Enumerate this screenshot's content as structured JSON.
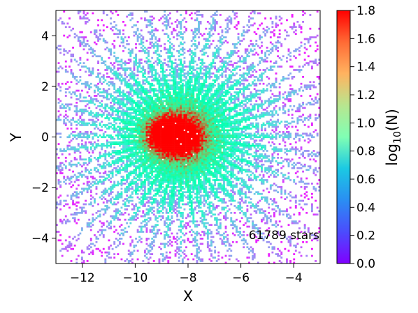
{
  "chart_data": {
    "type": "heatmap",
    "title": "",
    "xlabel": "X",
    "ylabel": "Y",
    "xlim": [
      -13,
      -3
    ],
    "ylim": [
      -5,
      5
    ],
    "xticks": [
      -12,
      -10,
      -8,
      -6,
      -4
    ],
    "yticks": [
      -4,
      -2,
      0,
      2,
      4
    ],
    "grid": false,
    "colormap": "rainbow",
    "colorbar": {
      "label": "log10(N)",
      "label_base": "log",
      "label_sub": "10",
      "label_tail": "(N)",
      "range": [
        0.0,
        1.8
      ],
      "ticks": [
        "0.0",
        "0.2",
        "0.4",
        "0.6",
        "0.8",
        "1.0",
        "1.2",
        "1.4",
        "1.6",
        "1.8"
      ]
    },
    "annotation": "61789 stars",
    "hotspot": {
      "x": -8.3,
      "y": 0.0
    },
    "secondary_hotspot": {
      "x": -9.0,
      "y": 0.05
    },
    "ray_angles_deg": [
      0,
      8,
      15,
      22,
      30,
      38,
      45,
      52,
      60,
      68,
      75,
      82,
      90,
      97,
      105,
      112,
      120,
      128,
      135,
      143,
      150,
      158,
      165,
      172,
      180,
      187,
      195,
      202,
      210,
      218,
      225,
      232,
      240,
      248,
      255,
      262,
      270,
      278,
      285,
      292,
      300,
      308,
      315,
      322,
      330,
      338,
      345,
      352
    ]
  }
}
